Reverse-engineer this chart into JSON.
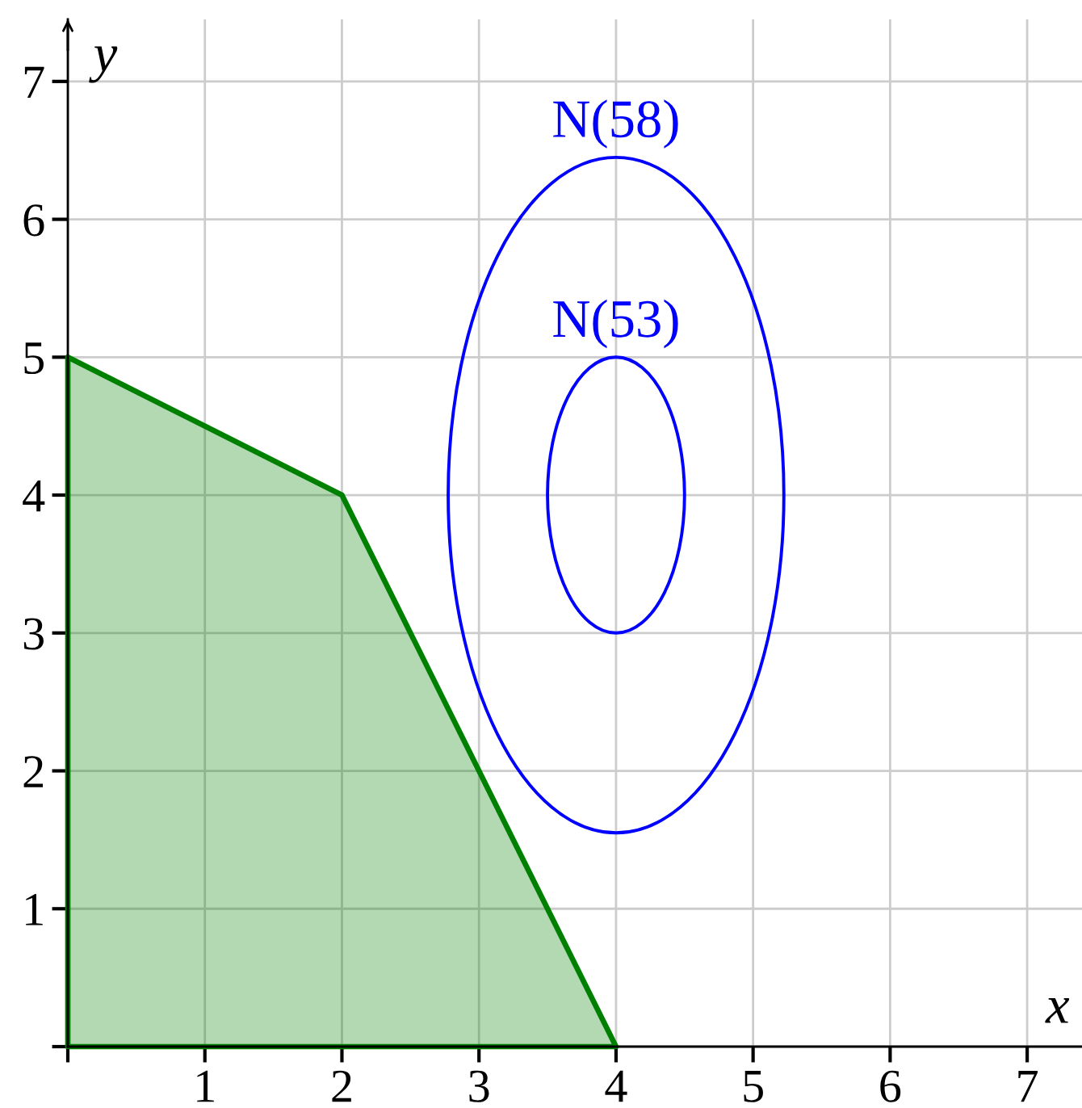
{
  "chart_data": {
    "type": "area",
    "xlabel": "x",
    "ylabel": "y",
    "xlim": [
      0,
      7.4
    ],
    "ylim": [
      0,
      7.45
    ],
    "xticks": [
      {
        "value": 0,
        "label": null
      },
      1,
      2,
      3,
      4,
      5,
      6,
      7
    ],
    "yticks": [
      {
        "value": 0,
        "label": null
      },
      1,
      2,
      3,
      4,
      5,
      6,
      7
    ],
    "grid": true,
    "series": [
      {
        "color": "#008000",
        "x": [
          0,
          2,
          4
        ],
        "values": [
          5,
          4,
          0
        ]
      }
    ],
    "annotations": [
      "N(58)",
      "N(53)"
    ]
  }
}
